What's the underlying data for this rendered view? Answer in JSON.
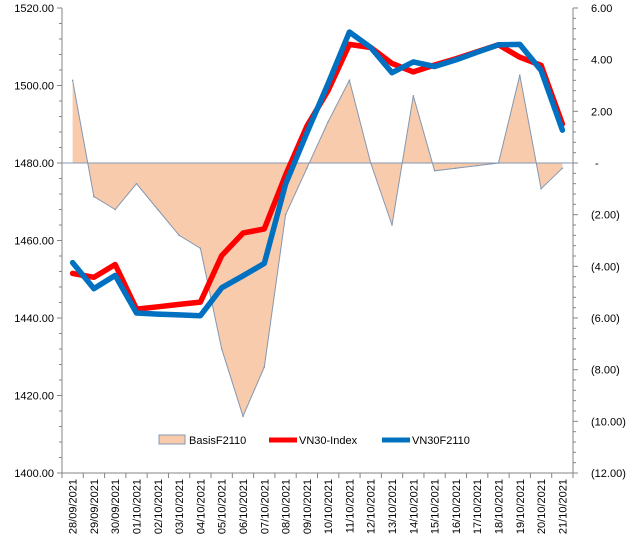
{
  "chart_data": {
    "type": "line",
    "title": "",
    "xlabel": "",
    "ylabel": "",
    "categories": [
      "28/09/2021",
      "29/09/2021",
      "30/09/2021",
      "01/10/2021",
      "02/10/2021",
      "03/10/2021",
      "04/10/2021",
      "05/10/2021",
      "06/10/2021",
      "07/10/2021",
      "08/10/2021",
      "09/10/2021",
      "10/10/2021",
      "11/10/2021",
      "12/10/2021",
      "13/10/2021",
      "14/10/2021",
      "15/10/2021",
      "16/10/2021",
      "17/10/2021",
      "18/10/2021",
      "19/10/2021",
      "20/10/2021",
      "21/10/2021"
    ],
    "left_axis": {
      "ylim": [
        1400,
        1520
      ],
      "tick_values": [
        1400,
        1420,
        1440,
        1460,
        1480,
        1500,
        1520
      ],
      "tick_labels": [
        "1400.00",
        "1420.00",
        "1440.00",
        "1460.00",
        "1480.00",
        "1500.00",
        "1520.00"
      ]
    },
    "right_axis": {
      "ylim": [
        -12,
        6
      ],
      "tick_values": [
        6,
        4,
        2,
        0,
        -2,
        -4,
        -6,
        -8,
        -10,
        -12
      ],
      "tick_labels": [
        "6.00",
        "4.00",
        "2.00",
        "-",
        "(2.00)",
        "(4.00)",
        "(6.00)",
        "(8.00)",
        "(10.00)",
        "(12.00)"
      ]
    },
    "series": [
      {
        "name": "BasisF2110",
        "type": "area",
        "axis": "right",
        "color": "#f8cbad",
        "stroke": "#8497b0",
        "values": [
          3.2,
          -1.3,
          -1.8,
          -0.8,
          -1.8,
          -2.8,
          -3.3,
          -7.2,
          -9.8,
          -7.9,
          -2.0,
          -0.2,
          1.6,
          3.2,
          0.0,
          -2.4,
          2.6,
          -0.3,
          -0.2,
          -0.1,
          0.0,
          3.4,
          -1.0,
          -0.2
        ]
      },
      {
        "name": "VN30-Index",
        "type": "line",
        "axis": "left",
        "color": "#ff0000",
        "values": [
          1451.5,
          1450.5,
          1453.8,
          1442.3,
          1442.9,
          1443.5,
          1444.1,
          1456.1,
          1461.9,
          1463.0,
          1476.9,
          1489.5,
          1498.7,
          1510.6,
          1509.8,
          1505.7,
          1503.5,
          1505.3,
          1506.9,
          1508.7,
          1510.5,
          1507.3,
          1505.2,
          1490.1
        ]
      },
      {
        "name": "VN30F2110",
        "type": "line",
        "axis": "left",
        "color": "#0070c0",
        "values": [
          1454.3,
          1447.6,
          1451.0,
          1441.3,
          1441.0,
          1440.8,
          1440.6,
          1447.8,
          1450.9,
          1454.1,
          1474.6,
          1487.8,
          1500.5,
          1513.8,
          1509.8,
          1503.3,
          1506.1,
          1504.9,
          1506.6,
          1508.6,
          1510.5,
          1510.6,
          1503.9,
          1488.5
        ]
      }
    ],
    "legend": {
      "placement": "bottom-center",
      "entries": [
        "BasisF2110",
        "VN30-Index",
        "VN30F2110"
      ]
    },
    "grid": false,
    "colors": {
      "axis": "#868686",
      "zero_line": "#8497b0",
      "basis_fill": "#f8cbad",
      "basis_stroke": "#8497b0",
      "index_line": "#ff0000",
      "futures_line": "#0070c0"
    }
  }
}
